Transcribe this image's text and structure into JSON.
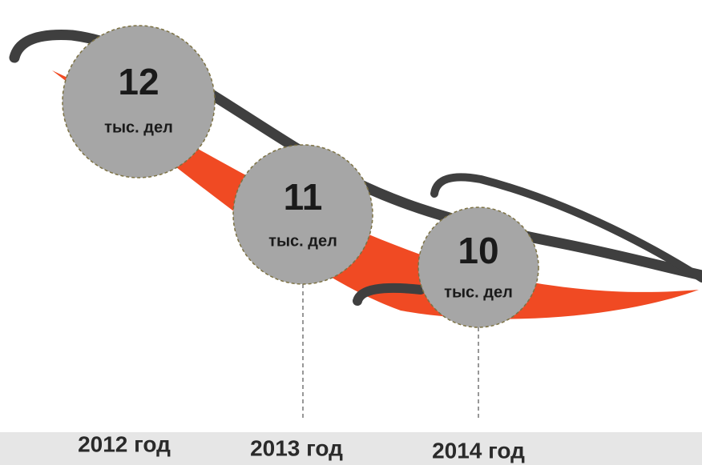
{
  "items": [
    {
      "number": 12,
      "unit": "тыс. дел",
      "year": "2012 год"
    },
    {
      "number": 11,
      "unit": "тыс. дел",
      "year": "2013 год"
    },
    {
      "number": 10,
      "unit": "тыс. дел",
      "year": "2014 год"
    }
  ]
}
